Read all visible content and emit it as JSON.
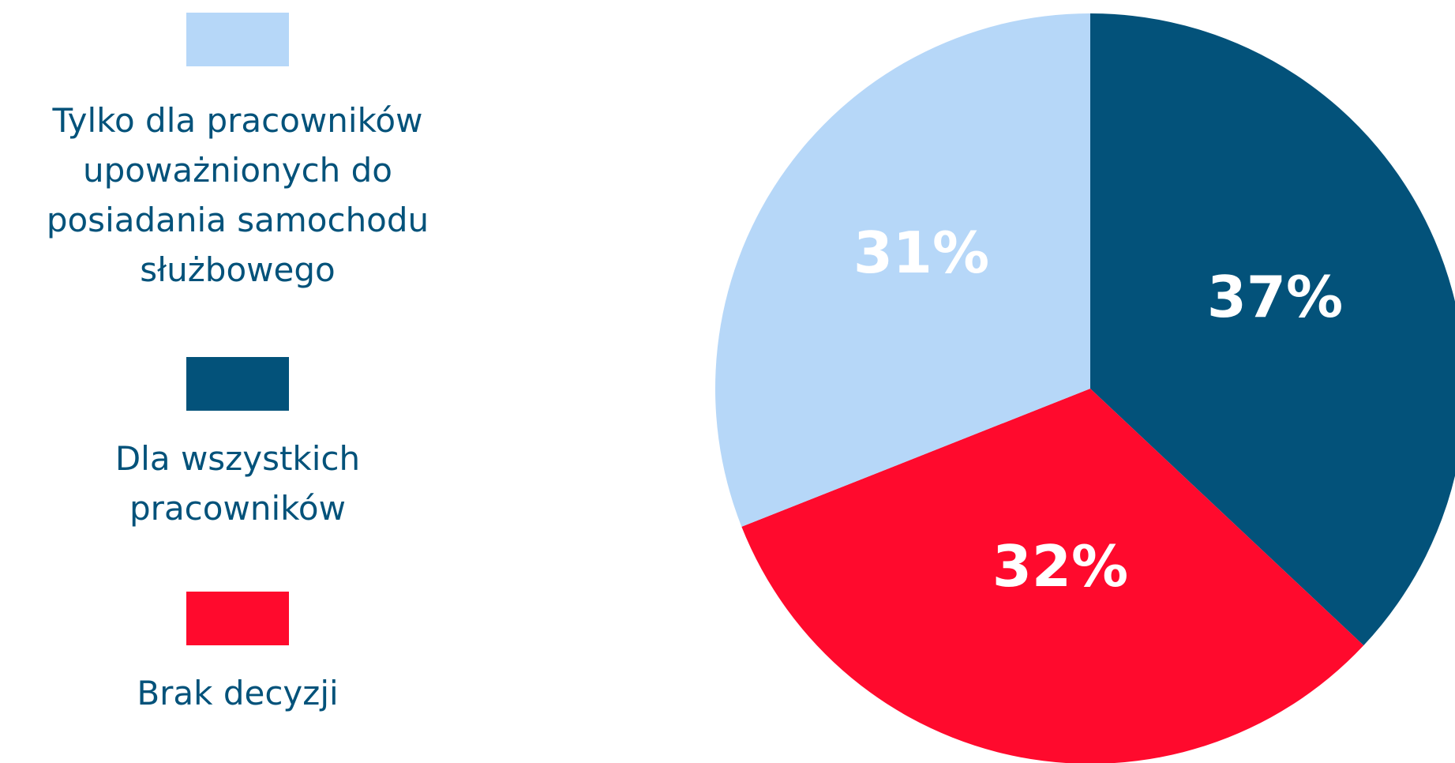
{
  "chart_data": {
    "type": "pie",
    "title": "",
    "slices": [
      {
        "label": "Dla wszystkich\npracowników",
        "value": 37,
        "display": "37%",
        "color": "#03527a"
      },
      {
        "label": "Brak decyzji",
        "value": 32,
        "display": "32%",
        "color": "#ff0a2d"
      },
      {
        "label": "Tylko dla pracowników\nupoważnionych do\nposiadania samochodu\nsłużbowego",
        "value": 31,
        "display": "31%",
        "color": "#b6d7f8"
      }
    ],
    "legend_position": "left"
  }
}
